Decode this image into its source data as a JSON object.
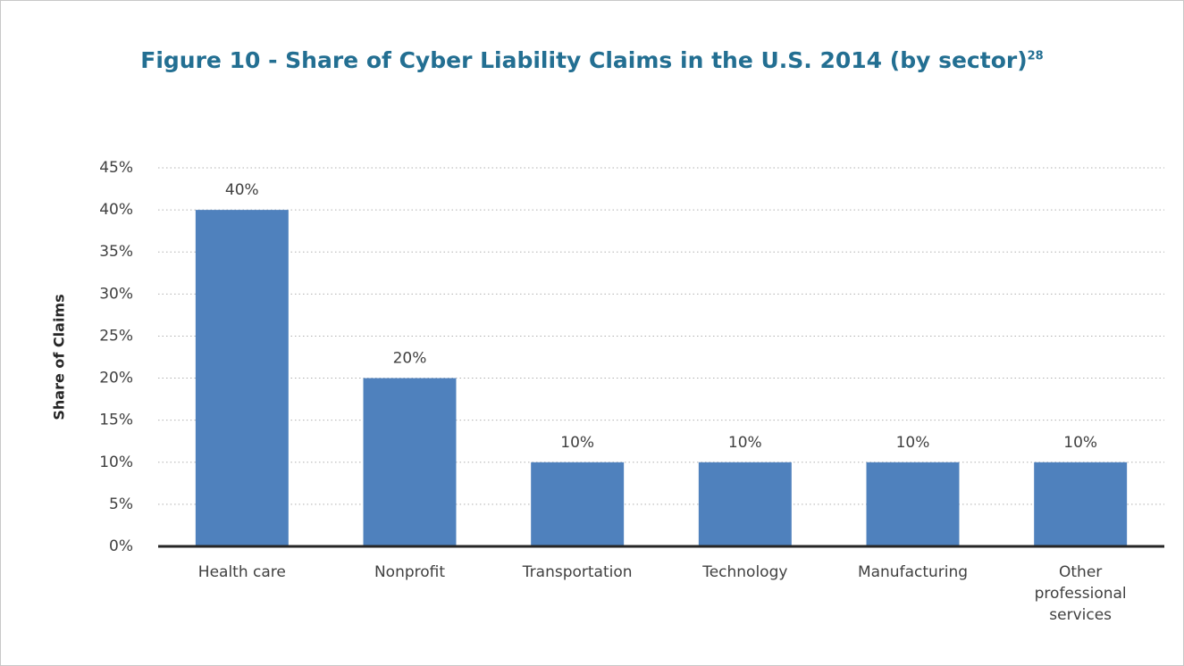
{
  "chart_data": {
    "type": "bar",
    "title": "Figure 10 - Share of Cyber Liability Claims in the U.S. 2014 (by sector)",
    "title_footnote": "28",
    "y_label": "Share of Claims",
    "categories": [
      "Health care",
      "Nonprofit",
      "Transportation",
      "Technology",
      "Manufacturing",
      "Other professional services"
    ],
    "values": [
      40,
      20,
      10,
      10,
      10,
      10
    ],
    "value_labels": [
      "40%",
      "20%",
      "10%",
      "10%",
      "10%",
      "10%"
    ],
    "color": "#4f81bd",
    "ylim": [
      0,
      45
    ],
    "yticks": [
      {
        "value": 0,
        "label": "0%"
      },
      {
        "value": 5,
        "label": "5%"
      },
      {
        "value": 10,
        "label": "10%"
      },
      {
        "value": 15,
        "label": "15%"
      },
      {
        "value": 20,
        "label": "20%"
      },
      {
        "value": 25,
        "label": "25%"
      },
      {
        "value": 30,
        "label": "30%"
      },
      {
        "value": 35,
        "label": "35%"
      },
      {
        "value": 40,
        "label": "40%"
      },
      {
        "value": 45,
        "label": "45%"
      }
    ],
    "grid": true
  }
}
